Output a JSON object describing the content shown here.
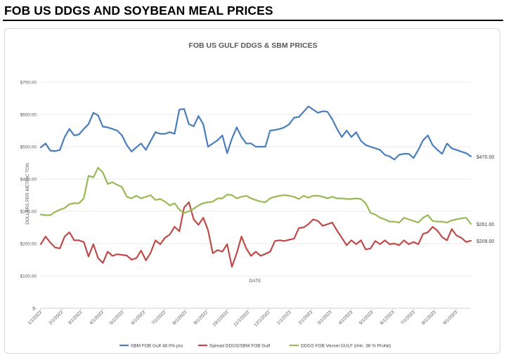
{
  "header": {
    "title": "FOB US DDGS AND SOYBEAN MEAL PRICES"
  },
  "chart_data": {
    "type": "line",
    "title": "FOB US GULF DDGS & SBM PRICES",
    "xlabel": "DATE",
    "ylabel": "DOLLARS PER METRIC TON",
    "ylim": [
      0,
      700
    ],
    "yticks": [
      0,
      100,
      200,
      300,
      400,
      500,
      600,
      700
    ],
    "ytick_labels": [
      "$-",
      "$100.00",
      "$200.00",
      "$300.00",
      "$400.00",
      "$500.00",
      "$600.00",
      "$700.00"
    ],
    "gridlines": true,
    "legend_position": "bottom",
    "x_start": "1/1/2022",
    "x_ticks": [
      {
        "week": 0,
        "label": "1/1/2022"
      },
      {
        "week": 4.4,
        "label": "2/1/2022"
      },
      {
        "week": 8.4,
        "label": "3/1/2022"
      },
      {
        "week": 12.9,
        "label": "4/1/2022"
      },
      {
        "week": 17.1,
        "label": "5/1/2022"
      },
      {
        "week": 21.6,
        "label": "6/1/2022"
      },
      {
        "week": 25.9,
        "label": "7/1/2022"
      },
      {
        "week": 30.3,
        "label": "8/1/2022"
      },
      {
        "week": 34.7,
        "label": "9/1/2022"
      },
      {
        "week": 39.0,
        "label": "10/1/2022"
      },
      {
        "week": 43.4,
        "label": "11/1/2022"
      },
      {
        "week": 47.7,
        "label": "12/1/2022"
      },
      {
        "week": 52.1,
        "label": "1/1/2023"
      },
      {
        "week": 56.6,
        "label": "2/1/2023"
      },
      {
        "week": 60.6,
        "label": "3/1/2023"
      },
      {
        "week": 65.0,
        "label": "4/1/2023"
      },
      {
        "week": 69.3,
        "label": "5/1/2023"
      },
      {
        "week": 73.7,
        "label": "6/1/2023"
      },
      {
        "week": 78.0,
        "label": "7/1/2023"
      },
      {
        "week": 82.4,
        "label": "8/1/2023"
      },
      {
        "week": 86.9,
        "label": "9/1/2023"
      }
    ],
    "series": [
      {
        "name": "SBM FOB Gulf 48.0% pro",
        "color": "#4a7ebb",
        "end_label": "$470.00",
        "values": [
          498,
          510,
          488,
          486,
          490,
          530,
          555,
          535,
          538,
          555,
          570,
          605,
          597,
          562,
          560,
          555,
          550,
          535,
          505,
          485,
          498,
          510,
          490,
          518,
          545,
          540,
          540,
          545,
          540,
          615,
          617,
          570,
          563,
          595,
          570,
          500,
          510,
          520,
          535,
          480,
          525,
          560,
          530,
          510,
          510,
          500,
          500,
          500,
          550,
          552,
          555,
          560,
          570,
          590,
          592,
          608,
          625,
          615,
          605,
          610,
          608,
          585,
          555,
          530,
          550,
          530,
          545,
          518,
          505,
          500,
          495,
          490,
          475,
          470,
          460,
          475,
          478,
          478,
          465,
          490,
          520,
          535,
          505,
          490,
          478,
          510,
          495,
          490,
          485,
          480,
          470
        ]
      },
      {
        "name": "Spread DDGS/SBM FOB Gulf",
        "color": "#be4b48",
        "end_label": "$209.00",
        "values": [
          198,
          222,
          203,
          188,
          185,
          222,
          235,
          210,
          210,
          205,
          160,
          198,
          155,
          140,
          175,
          162,
          167,
          165,
          163,
          150,
          155,
          178,
          148,
          172,
          210,
          198,
          218,
          228,
          252,
          238,
          312,
          328,
          275,
          258,
          280,
          242,
          170,
          180,
          175,
          198,
          128,
          170,
          222,
          185,
          162,
          175,
          162,
          168,
          175,
          208,
          210,
          208,
          212,
          215,
          248,
          250,
          260,
          275,
          270,
          255,
          260,
          265,
          240,
          218,
          195,
          210,
          198,
          210,
          182,
          185,
          208,
          198,
          210,
          198,
          200,
          195,
          210,
          198,
          205,
          198,
          230,
          235,
          252,
          240,
          220,
          210,
          245,
          225,
          218,
          205,
          209
        ]
      },
      {
        "name": "DDGS FOB Vessel GULF  (min. 36 % Profat)",
        "color": "#98b954",
        "end_label": "$261.00",
        "values": [
          290,
          288,
          288,
          298,
          305,
          310,
          322,
          325,
          325,
          340,
          410,
          405,
          435,
          420,
          385,
          390,
          382,
          375,
          345,
          340,
          348,
          340,
          345,
          350,
          335,
          338,
          330,
          318,
          325,
          305,
          295,
          300,
          308,
          318,
          325,
          328,
          330,
          340,
          340,
          352,
          350,
          340,
          345,
          348,
          340,
          335,
          330,
          328,
          340,
          345,
          348,
          350,
          348,
          345,
          338,
          348,
          342,
          348,
          348,
          345,
          340,
          345,
          340,
          340,
          338,
          338,
          340,
          338,
          325,
          295,
          290,
          280,
          275,
          268,
          268,
          265,
          280,
          275,
          270,
          265,
          280,
          288,
          270,
          268,
          268,
          265,
          272,
          275,
          278,
          280,
          261
        ]
      }
    ]
  }
}
